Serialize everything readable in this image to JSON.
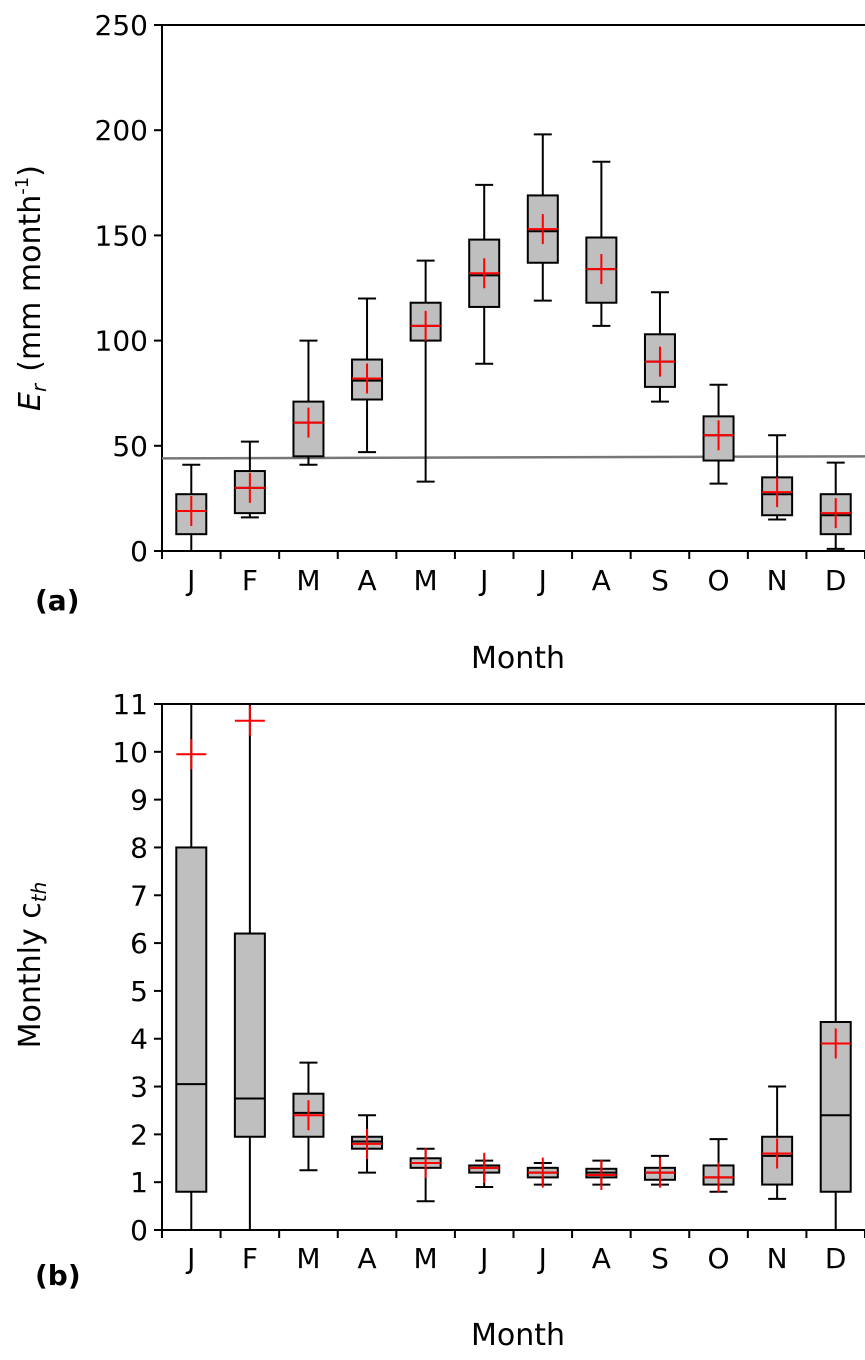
{
  "chart_data": [
    {
      "type": "box",
      "panel_label": "(a)",
      "xlabel": "Month",
      "ylabel_main": "E",
      "ylabel_sub": "r",
      "ylabel_unit": "(mm month",
      "ylabel_exp": "-1",
      "ylabel_close": ")",
      "categories": [
        "J",
        "F",
        "M",
        "A",
        "M",
        "J",
        "J",
        "A",
        "S",
        "O",
        "N",
        "D"
      ],
      "ylim": [
        0,
        250
      ],
      "yticks": [
        "0",
        "50",
        "100",
        "150",
        "200",
        "250"
      ],
      "reference_line": [
        44,
        45
      ],
      "grid": false,
      "boxes": [
        {
          "min": 0,
          "q1": 8,
          "median": 19,
          "q3": 27,
          "max": 41,
          "mean": 19
        },
        {
          "min": 16,
          "q1": 18,
          "median": 30,
          "q3": 38,
          "max": 52,
          "mean": 30
        },
        {
          "min": 41,
          "q1": 45,
          "median": 61,
          "q3": 71,
          "max": 100,
          "mean": 61
        },
        {
          "min": 47,
          "q1": 72,
          "median": 81,
          "q3": 91,
          "max": 120,
          "mean": 82
        },
        {
          "min": 33,
          "q1": 100,
          "median": 107,
          "q3": 118,
          "max": 138,
          "mean": 107
        },
        {
          "min": 89,
          "q1": 116,
          "median": 131,
          "q3": 148,
          "max": 174,
          "mean": 132
        },
        {
          "min": 119,
          "q1": 137,
          "median": 152,
          "q3": 169,
          "max": 198,
          "mean": 153
        },
        {
          "min": 107,
          "q1": 118,
          "median": 134,
          "q3": 149,
          "max": 185,
          "mean": 134
        },
        {
          "min": 71,
          "q1": 78,
          "median": 90,
          "q3": 103,
          "max": 123,
          "mean": 90
        },
        {
          "min": 32,
          "q1": 43,
          "median": 55,
          "q3": 64,
          "max": 79,
          "mean": 55
        },
        {
          "min": 15,
          "q1": 17,
          "median": 27,
          "q3": 35,
          "max": 55,
          "mean": 28
        },
        {
          "min": 1,
          "q1": 8,
          "median": 17,
          "q3": 27,
          "max": 42,
          "mean": 18
        }
      ]
    },
    {
      "type": "box",
      "panel_label": "(b)",
      "xlabel": "Month",
      "ylabel_main": "Monthly c",
      "ylabel_sub": "th",
      "categories": [
        "J",
        "F",
        "M",
        "A",
        "M",
        "J",
        "J",
        "A",
        "S",
        "O",
        "N",
        "D"
      ],
      "ylim": [
        0,
        11
      ],
      "yticks": [
        "0",
        "1",
        "2",
        "3",
        "4",
        "5",
        "6",
        "7",
        "8",
        "9",
        "10",
        "11"
      ],
      "grid": false,
      "boxes": [
        {
          "min": 0,
          "q1": 0.8,
          "median": 3.05,
          "q3": 8.0,
          "max": 11,
          "mean": 9.95
        },
        {
          "min": 0,
          "q1": 1.95,
          "median": 2.75,
          "q3": 6.2,
          "max": 11,
          "mean": 10.65
        },
        {
          "min": 1.25,
          "q1": 1.95,
          "median": 2.45,
          "q3": 2.85,
          "max": 3.5,
          "mean": 2.4
        },
        {
          "min": 1.2,
          "q1": 1.7,
          "median": 1.85,
          "q3": 1.95,
          "max": 2.4,
          "mean": 1.8
        },
        {
          "min": 0.6,
          "q1": 1.3,
          "median": 1.4,
          "q3": 1.5,
          "max": 1.7,
          "mean": 1.4
        },
        {
          "min": 0.9,
          "q1": 1.2,
          "median": 1.3,
          "q3": 1.35,
          "max": 1.45,
          "mean": 1.3
        },
        {
          "min": 0.95,
          "q1": 1.1,
          "median": 1.2,
          "q3": 1.3,
          "max": 1.4,
          "mean": 1.2
        },
        {
          "min": 0.95,
          "q1": 1.1,
          "median": 1.2,
          "q3": 1.28,
          "max": 1.45,
          "mean": 1.15
        },
        {
          "min": 0.95,
          "q1": 1.05,
          "median": 1.2,
          "q3": 1.3,
          "max": 1.55,
          "mean": 1.2
        },
        {
          "min": 0.8,
          "q1": 0.95,
          "median": 1.1,
          "q3": 1.35,
          "max": 1.9,
          "mean": 1.1
        },
        {
          "min": 0.65,
          "q1": 0.95,
          "median": 1.55,
          "q3": 1.95,
          "max": 3.0,
          "mean": 1.6
        },
        {
          "min": 0,
          "q1": 0.8,
          "median": 2.4,
          "q3": 4.35,
          "max": 11,
          "mean": 3.9
        }
      ]
    }
  ]
}
